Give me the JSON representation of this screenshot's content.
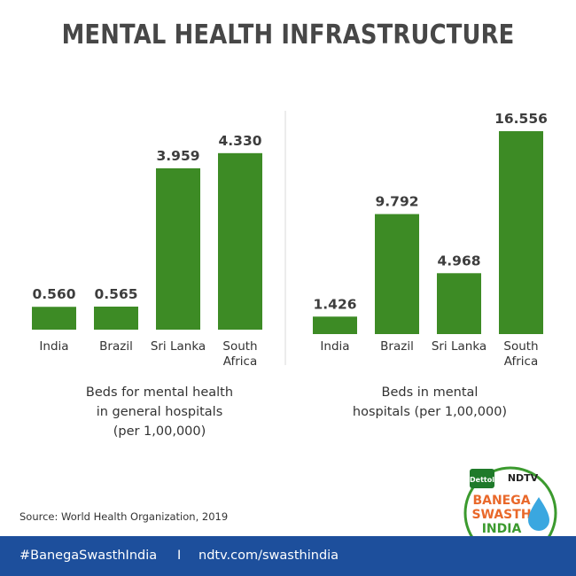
{
  "title": "MENTAL HEALTH INFRASTRUCTURE",
  "chart_data": [
    {
      "type": "bar",
      "categories": [
        "India",
        "Brazil",
        "Sri Lanka",
        "South Africa"
      ],
      "values": [
        0.56,
        0.565,
        3.959,
        4.33
      ],
      "value_labels": [
        "0.560",
        "0.565",
        "3.959",
        "4.330"
      ],
      "caption_lines": [
        "Beds for mental health",
        "in general hospitals",
        "(per 1,00,000)"
      ],
      "bar_color": "#3d8b25"
    },
    {
      "type": "bar",
      "categories": [
        "India",
        "Brazil",
        "Sri Lanka",
        "South Africa"
      ],
      "values": [
        1.426,
        9.792,
        4.968,
        16.556
      ],
      "value_labels": [
        "1.426",
        "9.792",
        "4.968",
        "16.556"
      ],
      "caption_lines": [
        "Beds in mental",
        "hospitals (per 1,00,000)"
      ],
      "bar_color": "#3d8b25"
    }
  ],
  "source": "Source: World Health Organization, 2019",
  "footer": {
    "hashtag": "#BanegaSwasthIndia",
    "separator": "I",
    "url": "ndtv.com/swasthindia",
    "background": "#1d4f9c"
  },
  "logo": {
    "brand1": "Dettol",
    "brand2": "NDTV",
    "line1": "BANEGA",
    "line2": "SWASTH",
    "line3": "INDIA"
  }
}
